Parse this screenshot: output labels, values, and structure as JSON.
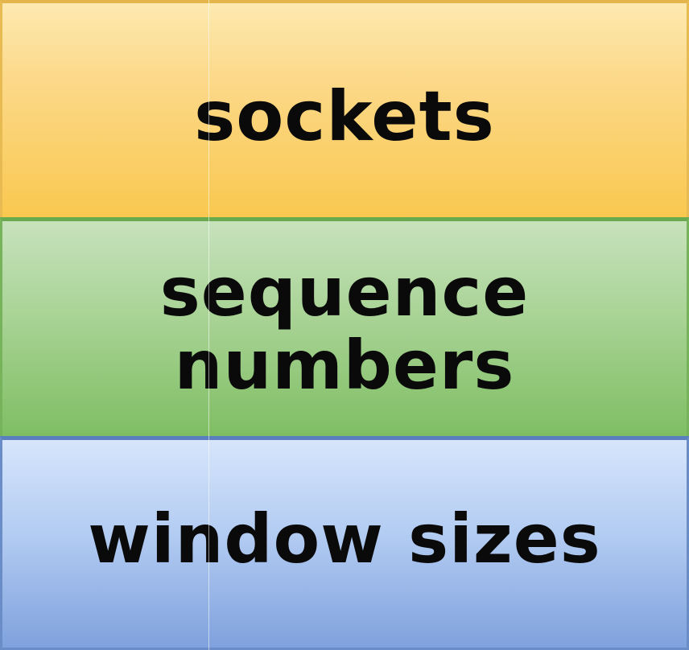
{
  "layers": [
    {
      "label": "sockets"
    },
    {
      "label": "sequence numbers"
    },
    {
      "label": "window sizes"
    }
  ],
  "colors": {
    "sockets": "#f9c84f",
    "sequence_numbers": "#7fbe63",
    "window_sizes": "#7fa1dd",
    "text": "#0a0a0a"
  }
}
